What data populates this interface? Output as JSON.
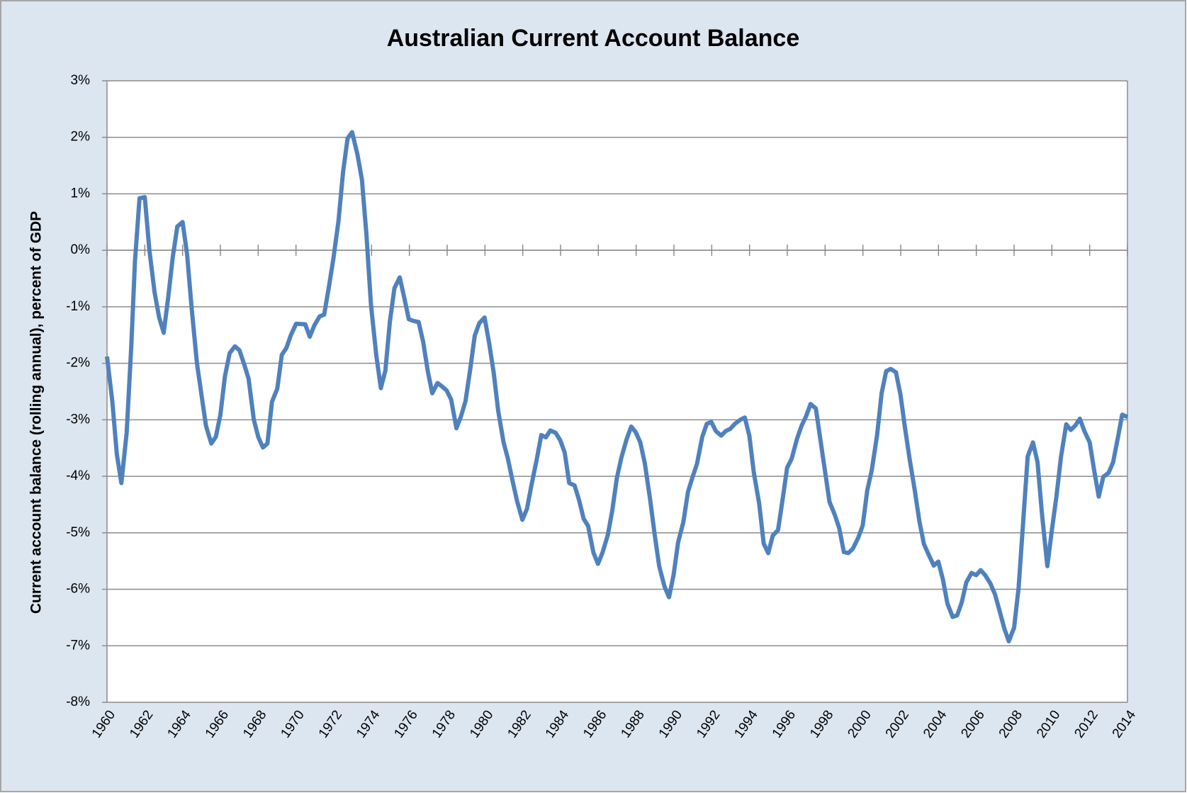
{
  "chart_data": {
    "type": "line",
    "title": "Australian Current Account Balance",
    "y_label": "Current account balance (rolling annual), percent of GDP",
    "color": "#4f81bd",
    "grid": true,
    "xlim": [
      1960,
      2014
    ],
    "xticks": [
      1960,
      1962,
      1964,
      1966,
      1968,
      1970,
      1972,
      1974,
      1976,
      1978,
      1980,
      1982,
      1984,
      1986,
      1988,
      1990,
      1992,
      1994,
      1996,
      1998,
      2000,
      2002,
      2004,
      2006,
      2008,
      2010,
      2012,
      2014
    ],
    "ylim": [
      -8,
      3
    ],
    "yticks": [
      {
        "value": -8,
        "label": "-8%"
      },
      {
        "value": -7,
        "label": "-7%"
      },
      {
        "value": -6,
        "label": "-6%"
      },
      {
        "value": -5,
        "label": "-5%"
      },
      {
        "value": -4,
        "label": "-4%"
      },
      {
        "value": -3,
        "label": "-3%"
      },
      {
        "value": -2,
        "label": "-2%"
      },
      {
        "value": -1,
        "label": "-1%"
      },
      {
        "value": 0,
        "label": "0%"
      },
      {
        "value": 1,
        "label": "1%"
      },
      {
        "value": 2,
        "label": "2%"
      },
      {
        "value": 3,
        "label": "3%"
      }
    ],
    "x": [
      1960.0,
      1960.28,
      1960.52,
      1960.76,
      1961.04,
      1961.28,
      1961.48,
      1961.72,
      1962.0,
      1962.24,
      1962.52,
      1962.76,
      1963.0,
      1963.24,
      1963.48,
      1963.72,
      1964.0,
      1964.24,
      1964.48,
      1964.76,
      1965.0,
      1965.24,
      1965.52,
      1965.76,
      1966.0,
      1966.24,
      1966.49,
      1966.77,
      1967.01,
      1967.25,
      1967.49,
      1967.77,
      1968.01,
      1968.25,
      1968.49,
      1968.73,
      1969.01,
      1969.25,
      1969.49,
      1969.73,
      1970.01,
      1970.49,
      1970.73,
      1970.97,
      1971.25,
      1971.49,
      1971.73,
      1971.97,
      1972.25,
      1972.49,
      1972.73,
      1972.97,
      1973.25,
      1973.49,
      1973.73,
      1973.97,
      1974.25,
      1974.49,
      1974.73,
      1974.97,
      1975.21,
      1975.49,
      1975.73,
      1975.97,
      1976.21,
      1976.49,
      1976.73,
      1976.97,
      1977.21,
      1977.49,
      1977.73,
      1977.97,
      1978.21,
      1978.49,
      1978.73,
      1978.97,
      1979.21,
      1979.46,
      1979.7,
      1979.98,
      1980.22,
      1980.46,
      1980.7,
      1980.98,
      1981.22,
      1981.46,
      1981.7,
      1981.98,
      1982.22,
      1982.46,
      1982.74,
      1982.98,
      1983.22,
      1983.46,
      1983.74,
      1983.98,
      1984.22,
      1984.46,
      1984.74,
      1984.98,
      1985.22,
      1985.46,
      1985.74,
      1985.98,
      1986.22,
      1986.5,
      1986.74,
      1986.98,
      1987.22,
      1987.5,
      1987.74,
      1987.98,
      1988.22,
      1988.46,
      1988.74,
      1988.98,
      1989.22,
      1989.5,
      1989.74,
      1989.98,
      1990.22,
      1990.5,
      1990.74,
      1990.98,
      1991.22,
      1991.5,
      1991.74,
      1991.98,
      1992.22,
      1992.5,
      1992.74,
      1992.98,
      1993.23,
      1993.51,
      1993.75,
      1993.99,
      1994.23,
      1994.51,
      1994.75,
      1994.99,
      1995.23,
      1995.51,
      1995.75,
      1995.99,
      1996.23,
      1996.51,
      1996.75,
      1996.99,
      1997.23,
      1997.51,
      1997.75,
      1997.99,
      1998.23,
      1998.51,
      1998.75,
      1998.99,
      1999.23,
      1999.47,
      1999.75,
      1999.99,
      2000.23,
      2000.47,
      2000.75,
      2000.99,
      2001.23,
      2001.47,
      2001.75,
      2001.99,
      2002.23,
      2002.47,
      2002.75,
      2002.99,
      2003.23,
      2003.47,
      2003.75,
      2003.99,
      2004.23,
      2004.47,
      2004.75,
      2004.99,
      2005.23,
      2005.47,
      2005.75,
      2005.99,
      2006.23,
      2006.47,
      2006.75,
      2006.99,
      2007.24,
      2007.48,
      2007.72,
      2008.0,
      2008.24,
      2008.48,
      2008.72,
      2009.0,
      2009.24,
      2009.48,
      2009.76,
      2010.0,
      2010.24,
      2010.48,
      2010.76,
      2011.0,
      2011.24,
      2011.48,
      2011.72,
      2012.0,
      2012.24,
      2012.48,
      2012.72,
      2013.0,
      2013.24,
      2013.48,
      2013.72,
      2014.0
    ],
    "values": [
      -1.88,
      -2.67,
      -3.61,
      -4.12,
      -3.23,
      -1.73,
      -0.19,
      0.92,
      0.94,
      0.01,
      -0.75,
      -1.19,
      -1.46,
      -0.83,
      -0.12,
      0.42,
      0.5,
      -0.08,
      -1.03,
      -2.0,
      -2.56,
      -3.11,
      -3.42,
      -3.3,
      -2.91,
      -2.23,
      -1.82,
      -1.7,
      -1.77,
      -2.01,
      -2.27,
      -3.0,
      -3.31,
      -3.49,
      -3.42,
      -2.68,
      -2.45,
      -1.85,
      -1.73,
      -1.5,
      -1.3,
      -1.31,
      -1.53,
      -1.33,
      -1.17,
      -1.14,
      -0.67,
      -0.17,
      0.52,
      1.38,
      1.98,
      2.09,
      1.7,
      1.25,
      0.27,
      -0.97,
      -1.86,
      -2.44,
      -2.13,
      -1.26,
      -0.67,
      -0.48,
      -0.84,
      -1.22,
      -1.25,
      -1.27,
      -1.62,
      -2.13,
      -2.53,
      -2.35,
      -2.41,
      -2.48,
      -2.64,
      -3.15,
      -2.94,
      -2.67,
      -2.13,
      -1.51,
      -1.29,
      -1.19,
      -1.64,
      -2.16,
      -2.84,
      -3.39,
      -3.7,
      -4.08,
      -4.44,
      -4.77,
      -4.58,
      -4.16,
      -3.7,
      -3.27,
      -3.31,
      -3.19,
      -3.23,
      -3.36,
      -3.58,
      -4.12,
      -4.16,
      -4.42,
      -4.75,
      -4.88,
      -5.35,
      -5.55,
      -5.35,
      -5.04,
      -4.6,
      -4.03,
      -3.67,
      -3.34,
      -3.12,
      -3.22,
      -3.4,
      -3.77,
      -4.41,
      -5.03,
      -5.59,
      -5.95,
      -6.14,
      -5.75,
      -5.17,
      -4.81,
      -4.28,
      -4.02,
      -3.78,
      -3.3,
      -3.07,
      -3.04,
      -3.2,
      -3.28,
      -3.2,
      -3.16,
      -3.07,
      -3.0,
      -2.96,
      -3.28,
      -3.94,
      -4.48,
      -5.19,
      -5.36,
      -5.05,
      -4.95,
      -4.41,
      -3.85,
      -3.69,
      -3.34,
      -3.11,
      -2.94,
      -2.72,
      -2.8,
      -3.35,
      -3.9,
      -4.45,
      -4.68,
      -4.92,
      -5.34,
      -5.36,
      -5.28,
      -5.09,
      -4.87,
      -4.25,
      -3.89,
      -3.27,
      -2.53,
      -2.14,
      -2.1,
      -2.16,
      -2.56,
      -3.15,
      -3.69,
      -4.26,
      -4.8,
      -5.2,
      -5.38,
      -5.58,
      -5.51,
      -5.82,
      -6.25,
      -6.49,
      -6.46,
      -6.23,
      -5.88,
      -5.71,
      -5.75,
      -5.66,
      -5.75,
      -5.9,
      -6.09,
      -6.39,
      -6.69,
      -6.92,
      -6.68,
      -5.97,
      -4.81,
      -3.65,
      -3.4,
      -3.75,
      -4.68,
      -5.59,
      -4.95,
      -4.36,
      -3.66,
      -3.08,
      -3.18,
      -3.1,
      -2.98,
      -3.2,
      -3.4,
      -3.9,
      -4.36,
      -4.01,
      -3.94,
      -3.75,
      -3.34,
      -2.91,
      -2.95
    ]
  }
}
